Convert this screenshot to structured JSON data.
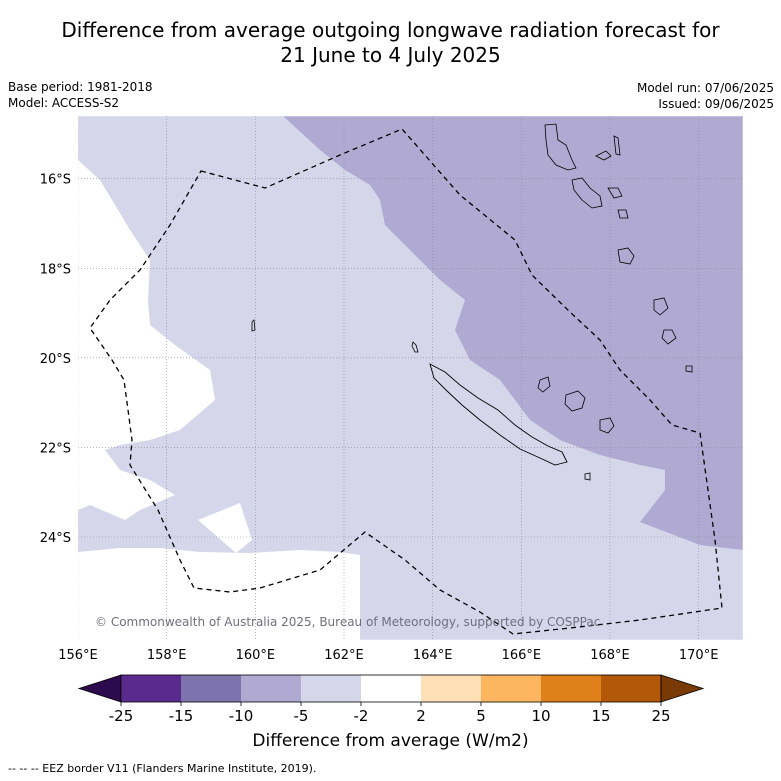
{
  "title": {
    "line1": "Difference from average outgoing longwave radiation forecast for",
    "line2": "21 June to 4 July 2025"
  },
  "meta": {
    "base_period": "Base period: 1981-2018",
    "model": "Model: ACCESS-S2",
    "model_run": "Model run: 07/06/2025",
    "issued": "Issued: 09/06/2025"
  },
  "map": {
    "lon_range": [
      156,
      171
    ],
    "lat_range": [
      -26.3,
      -14.6
    ],
    "lon_ticks": [
      156,
      158,
      160,
      162,
      164,
      166,
      168,
      170
    ],
    "lon_labels": [
      "156°E",
      "158°E",
      "160°E",
      "162°E",
      "164°E",
      "166°E",
      "168°E",
      "170°E"
    ],
    "lat_ticks": [
      -16,
      -18,
      -20,
      -22,
      -24
    ],
    "lat_labels": [
      "16°S",
      "18°S",
      "20°S",
      "22°S",
      "24°S"
    ],
    "copyright": "© Commonwealth of Australia 2025, Bureau of Meteorology, supported by COSPPac"
  },
  "colorbar": {
    "boundaries": [
      -25,
      -15,
      -10,
      -5,
      -2,
      2,
      5,
      10,
      15,
      25
    ],
    "labels": [
      "-25",
      "-15",
      "-10",
      "-5",
      "-2",
      "2",
      "5",
      "10",
      "15",
      "25"
    ],
    "colors": [
      "#5b2a8e",
      "#7e74ad",
      "#b0aad2",
      "#d6d6ea",
      "#ffffff",
      "#ffdfb6",
      "#fdb560",
      "#e0801a",
      "#b35808"
    ],
    "extend_low_color": "#2d0a4e",
    "extend_high_color": "#7a3a05",
    "label": "Difference from average (W/m2)"
  },
  "legend": {
    "eez": "--  --  -- EEZ border V11 (Flanders Marine Institute, 2019)."
  }
}
